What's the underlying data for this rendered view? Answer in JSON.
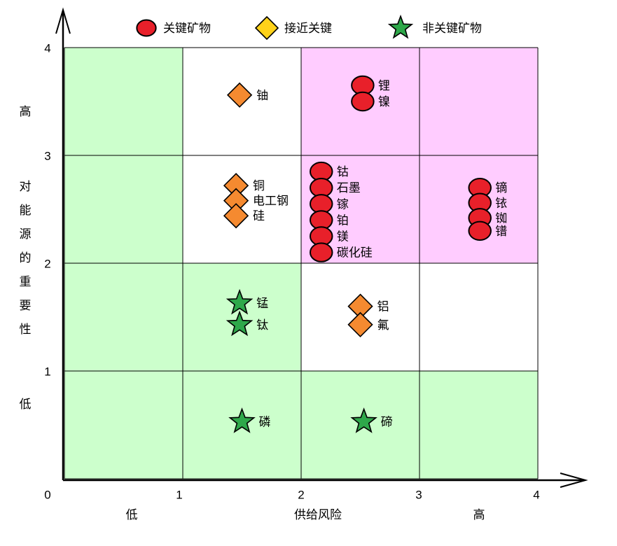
{
  "chart_data": {
    "type": "scatter",
    "xlabel": "供给风险",
    "ylabel": "对能源的重要性",
    "xlim": [
      0,
      4
    ],
    "ylim": [
      0,
      4
    ],
    "x_ticks": [
      "0",
      "1",
      "2",
      "3",
      "4"
    ],
    "y_ticks": [
      "1",
      "2",
      "3",
      "4"
    ],
    "x_low_label": "低",
    "x_high_label": "高",
    "y_low_label": "低",
    "y_high_label": "高",
    "grid": true,
    "legend_placement": "top",
    "legend": [
      {
        "key": "critical",
        "label": "关键矿物",
        "shape": "circle",
        "color": "#e8202a"
      },
      {
        "key": "near",
        "label": "接近关键",
        "shape": "diamond",
        "color": "#ffd21a"
      },
      {
        "key": "noncritical",
        "label": "非关键矿物",
        "shape": "star",
        "color": "#2ea84a"
      }
    ],
    "zone_colors": {
      "green": "#ccffcc",
      "white": "#ffffff",
      "pink": "#ffccff"
    },
    "zones": [
      [
        "green",
        "white",
        "pink",
        "pink"
      ],
      [
        "green",
        "white",
        "pink",
        "pink"
      ],
      [
        "green",
        "green",
        "white",
        "white"
      ],
      [
        "green",
        "green",
        "green",
        "green"
      ]
    ],
    "point_colors": {
      "critical": "#e8202a",
      "near": "#f58a30",
      "noncritical": "#2ea84a"
    },
    "points": [
      {
        "label": "铀",
        "x": 1.48,
        "y": 3.56,
        "category": "near"
      },
      {
        "label": "锂",
        "x": 2.52,
        "y": 3.65,
        "category": "critical"
      },
      {
        "label": "镍",
        "x": 2.52,
        "y": 3.5,
        "category": "critical"
      },
      {
        "label": "铜",
        "x": 1.45,
        "y": 2.72,
        "category": "near"
      },
      {
        "label": "电工钢",
        "x": 1.45,
        "y": 2.58,
        "category": "near"
      },
      {
        "label": "硅",
        "x": 1.45,
        "y": 2.44,
        "category": "near"
      },
      {
        "label": "钴",
        "x": 2.17,
        "y": 2.85,
        "category": "critical"
      },
      {
        "label": "石墨",
        "x": 2.17,
        "y": 2.7,
        "category": "critical"
      },
      {
        "label": "镓",
        "x": 2.17,
        "y": 2.55,
        "category": "critical"
      },
      {
        "label": "铂",
        "x": 2.17,
        "y": 2.4,
        "category": "critical"
      },
      {
        "label": "镁",
        "x": 2.17,
        "y": 2.25,
        "category": "critical"
      },
      {
        "label": "碳化硅",
        "x": 2.17,
        "y": 2.1,
        "category": "critical"
      },
      {
        "label": "镝",
        "x": 3.51,
        "y": 2.7,
        "category": "critical"
      },
      {
        "label": "铱",
        "x": 3.51,
        "y": 2.56,
        "category": "critical"
      },
      {
        "label": "铷",
        "x": 3.51,
        "y": 2.42,
        "category": "critical"
      },
      {
        "label": "镨",
        "x": 3.51,
        "y": 2.3,
        "category": "critical"
      },
      {
        "label": "铝",
        "x": 2.5,
        "y": 1.6,
        "category": "near"
      },
      {
        "label": "氟",
        "x": 2.5,
        "y": 1.43,
        "category": "near"
      },
      {
        "label": "锰",
        "x": 1.48,
        "y": 1.63,
        "category": "noncritical"
      },
      {
        "label": "钛",
        "x": 1.48,
        "y": 1.43,
        "category": "noncritical"
      },
      {
        "label": "磷",
        "x": 1.5,
        "y": 0.53,
        "category": "noncritical"
      },
      {
        "label": "碲",
        "x": 2.53,
        "y": 0.53,
        "category": "noncritical"
      }
    ]
  }
}
